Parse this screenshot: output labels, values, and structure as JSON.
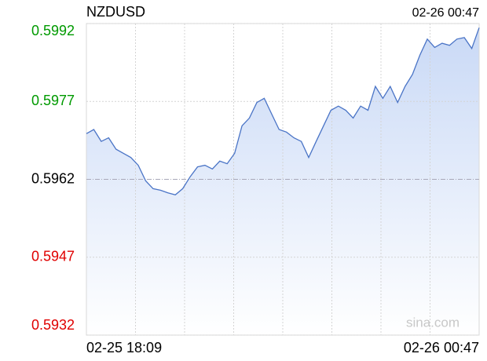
{
  "chart_data": {
    "type": "line",
    "title": "NZDUSD",
    "time": "02-26 00:47",
    "x_start_label": "02-25 18:09",
    "x_end_label": "02-26 00:47",
    "watermark": "sina.com",
    "values": [
      0.59708,
      0.59716,
      0.59693,
      0.597,
      0.59678,
      0.5967,
      0.59662,
      0.59647,
      0.59617,
      0.59602,
      0.59599,
      0.59594,
      0.5959,
      0.59602,
      0.59625,
      0.59644,
      0.59647,
      0.5964,
      0.59655,
      0.5965,
      0.5967,
      0.59723,
      0.59738,
      0.59768,
      0.59776,
      0.59746,
      0.59716,
      0.59711,
      0.597,
      0.59693,
      0.59662,
      0.59693,
      0.59723,
      0.59753,
      0.59761,
      0.59753,
      0.59738,
      0.59761,
      0.59753,
      0.59799,
      0.59776,
      0.59799,
      0.59768,
      0.59799,
      0.59822,
      0.59859,
      0.5989,
      0.59874,
      0.59882,
      0.59878,
      0.5989,
      0.59893,
      0.59872,
      0.59912
    ],
    "color": "#4a74c6",
    "ylim": [
      0.5932,
      0.5992
    ],
    "yticks": [
      0.5932,
      0.5947,
      0.5962,
      0.5977,
      0.5992
    ],
    "ytick_colors": [
      "#e00000",
      "#e00000",
      "#000000",
      "#009a00",
      "#009a00"
    ],
    "grid": true,
    "xgrid_divisions": 8
  }
}
